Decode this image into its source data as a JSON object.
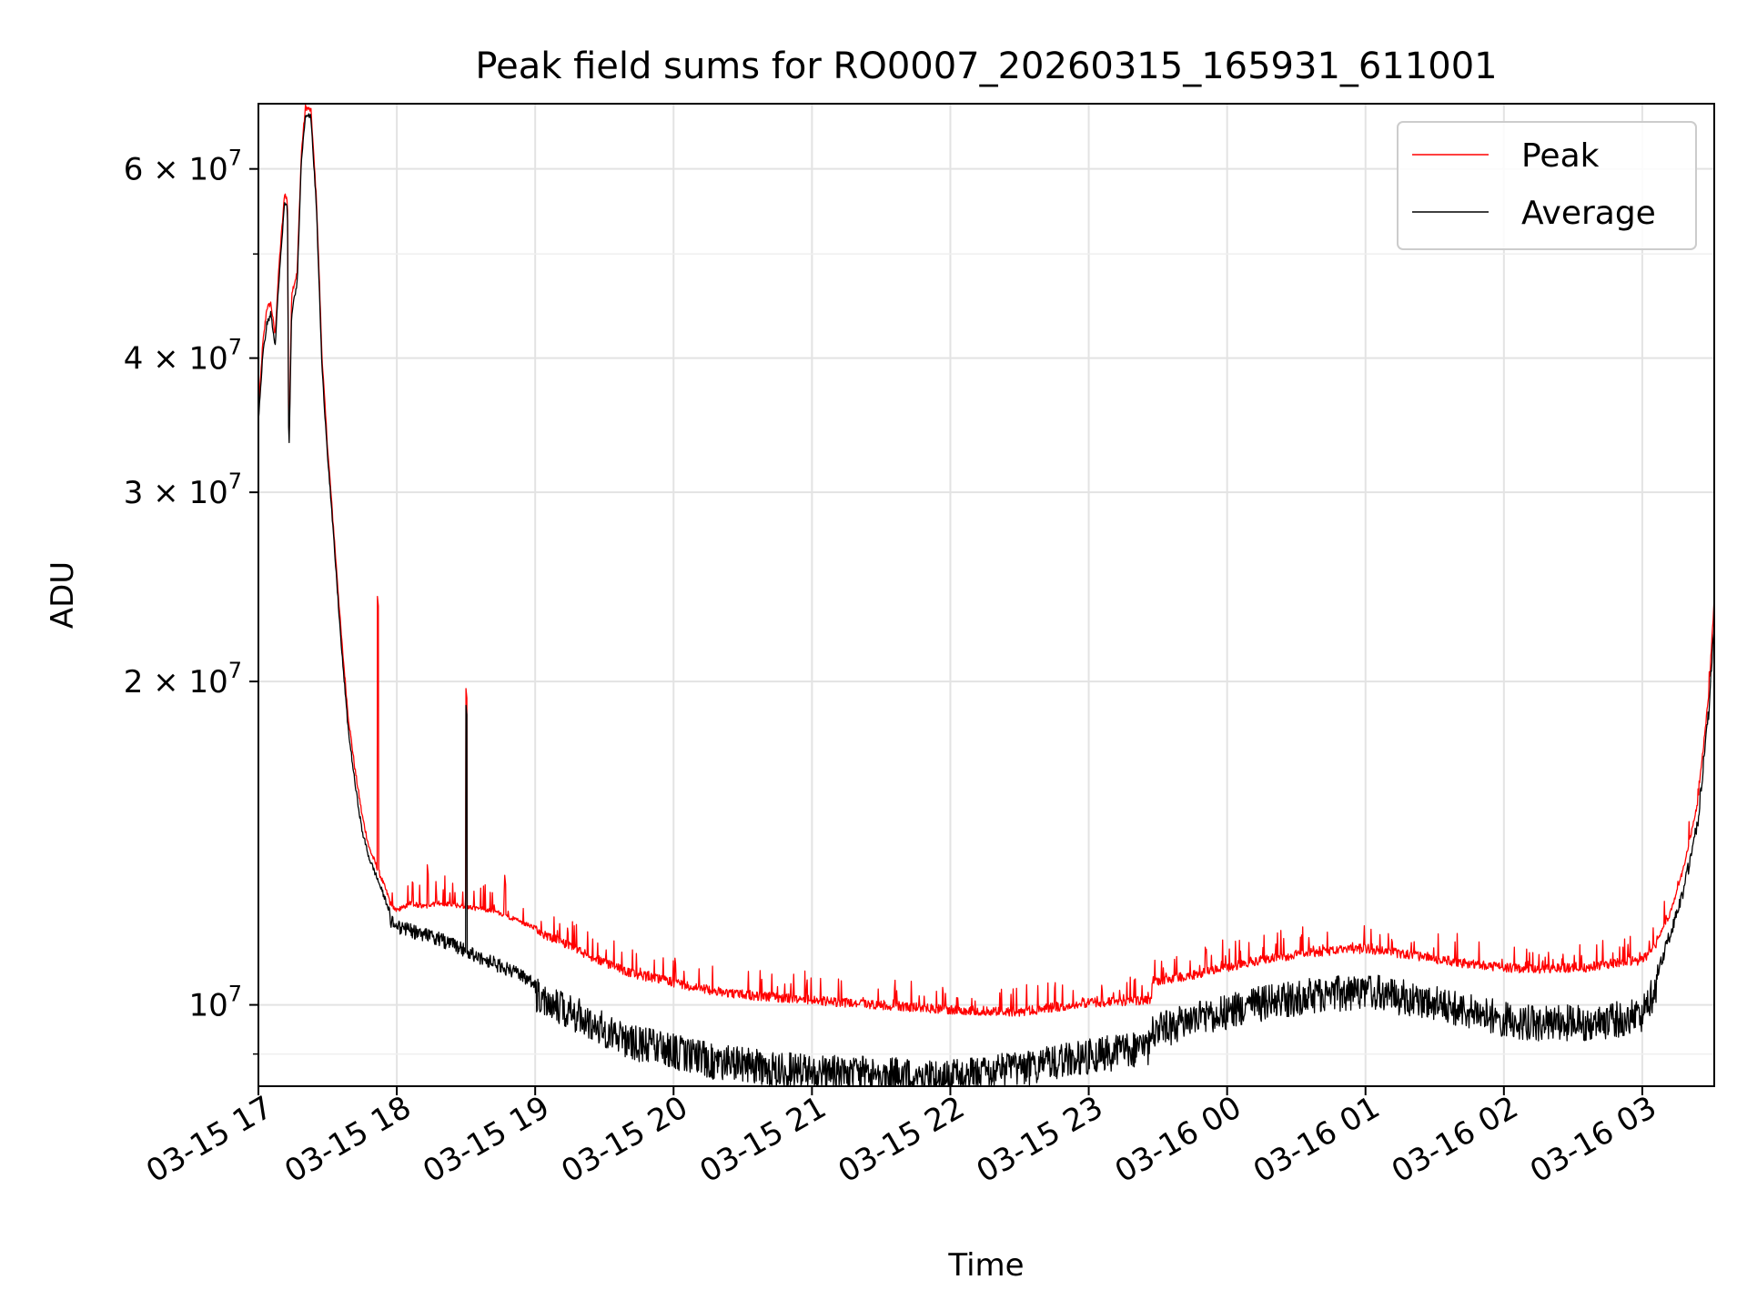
{
  "chart_data": {
    "type": "line",
    "title": "Peak field sums for RO0007_20260315_165931_611001",
    "xlabel": "Time",
    "ylabel": "ADU",
    "x_range_hours": [
      0,
      10.52
    ],
    "ylim": [
      8400000,
      69000000
    ],
    "yscale": "log",
    "grid": true,
    "legend_position": "top-right",
    "x_ticks": [
      {
        "label": "03-15 17",
        "hour": 0
      },
      {
        "label": "03-15 18",
        "hour": 1
      },
      {
        "label": "03-15 19",
        "hour": 2
      },
      {
        "label": "03-15 20",
        "hour": 3
      },
      {
        "label": "03-15 21",
        "hour": 4
      },
      {
        "label": "03-15 22",
        "hour": 5
      },
      {
        "label": "03-15 23",
        "hour": 6
      },
      {
        "label": "03-16 00",
        "hour": 7
      },
      {
        "label": "03-16 01",
        "hour": 8
      },
      {
        "label": "03-16 02",
        "hour": 9
      },
      {
        "label": "03-16 03",
        "hour": 10
      }
    ],
    "y_ticks_major": [
      {
        "value": 10000000,
        "mantissa": "",
        "exponent": "7"
      },
      {
        "value": 20000000,
        "mantissa": "2",
        "exponent": "7"
      },
      {
        "value": 30000000,
        "mantissa": "3",
        "exponent": "7"
      },
      {
        "value": 40000000,
        "mantissa": "4",
        "exponent": "7"
      },
      {
        "value": 60000000,
        "mantissa": "6",
        "exponent": "7"
      }
    ],
    "y_ticks_minor": [
      9000000,
      50000000
    ],
    "series": [
      {
        "name": "Peak",
        "color": "#ff0000",
        "points": [
          [
            0,
            35500000
          ],
          [
            0.03,
            41000000
          ],
          [
            0.06,
            44500000
          ],
          [
            0.09,
            45000000
          ],
          [
            0.12,
            42000000
          ],
          [
            0.15,
            49000000
          ],
          [
            0.19,
            57000000
          ],
          [
            0.21,
            56000000
          ],
          [
            0.22,
            32500000
          ],
          [
            0.24,
            46000000
          ],
          [
            0.28,
            48000000
          ],
          [
            0.31,
            62000000
          ],
          [
            0.34,
            68500000
          ],
          [
            0.38,
            68000000
          ],
          [
            0.42,
            56000000
          ],
          [
            0.46,
            40000000
          ],
          [
            0.5,
            33000000
          ],
          [
            0.55,
            27000000
          ],
          [
            0.6,
            22000000
          ],
          [
            0.65,
            18500000
          ],
          [
            0.7,
            16500000
          ],
          [
            0.75,
            15000000
          ],
          [
            0.8,
            14000000
          ],
          [
            0.85,
            13500000
          ],
          [
            0.9,
            13000000
          ],
          [
            0.95,
            12500000
          ],
          [
            1.0,
            12300000
          ],
          [
            1.1,
            12500000
          ],
          [
            1.2,
            12400000
          ],
          [
            1.3,
            12500000
          ],
          [
            1.5,
            12400000
          ],
          [
            1.7,
            12300000
          ],
          [
            1.9,
            12000000
          ],
          [
            2.1,
            11700000
          ],
          [
            2.4,
            11200000
          ],
          [
            2.7,
            10800000
          ],
          [
            3.0,
            10600000
          ],
          [
            3.3,
            10400000
          ],
          [
            3.6,
            10300000
          ],
          [
            4.0,
            10200000
          ],
          [
            4.5,
            10100000
          ],
          [
            5.0,
            10000000
          ],
          [
            5.5,
            9950000
          ],
          [
            6.0,
            10150000
          ],
          [
            6.45,
            10200000
          ],
          [
            6.46,
            10600000
          ],
          [
            6.8,
            10800000
          ],
          [
            7.2,
            11100000
          ],
          [
            7.6,
            11300000
          ],
          [
            8.0,
            11400000
          ],
          [
            8.4,
            11200000
          ],
          [
            8.8,
            11000000
          ],
          [
            9.2,
            10900000
          ],
          [
            9.6,
            10950000
          ],
          [
            9.9,
            11100000
          ],
          [
            10.0,
            11100000
          ],
          [
            10.1,
            11500000
          ],
          [
            10.2,
            12200000
          ],
          [
            10.3,
            13500000
          ],
          [
            10.4,
            15500000
          ],
          [
            10.48,
            19500000
          ],
          [
            10.52,
            24000000
          ]
        ],
        "spikes": [
          {
            "hour": 0.86,
            "value": 24000000
          },
          {
            "hour": 1.5,
            "value": 19700000
          },
          {
            "hour": 1.78,
            "value": 13200000
          },
          {
            "hour": 1.22,
            "value": 13500000
          }
        ]
      },
      {
        "name": "Average",
        "color": "#000000",
        "points": [
          [
            0,
            35000000
          ],
          [
            0.03,
            40000000
          ],
          [
            0.06,
            43000000
          ],
          [
            0.09,
            44000000
          ],
          [
            0.12,
            41000000
          ],
          [
            0.15,
            47500000
          ],
          [
            0.19,
            56000000
          ],
          [
            0.21,
            55000000
          ],
          [
            0.22,
            32000000
          ],
          [
            0.24,
            44000000
          ],
          [
            0.28,
            47000000
          ],
          [
            0.31,
            61000000
          ],
          [
            0.34,
            67500000
          ],
          [
            0.38,
            67000000
          ],
          [
            0.42,
            55000000
          ],
          [
            0.46,
            39000000
          ],
          [
            0.5,
            32500000
          ],
          [
            0.55,
            26500000
          ],
          [
            0.6,
            21500000
          ],
          [
            0.65,
            18000000
          ],
          [
            0.7,
            16000000
          ],
          [
            0.75,
            14500000
          ],
          [
            0.8,
            13700000
          ],
          [
            0.85,
            13200000
          ],
          [
            0.9,
            12700000
          ],
          [
            0.95,
            12200000
          ],
          [
            1.0,
            12000000
          ],
          [
            1.1,
            11900000
          ],
          [
            1.2,
            11800000
          ],
          [
            1.3,
            11700000
          ],
          [
            1.5,
            11400000
          ],
          [
            1.7,
            11100000
          ],
          [
            1.9,
            10800000
          ],
          [
            2.1,
            10500000
          ],
          [
            2.4,
            10000000
          ],
          [
            2.7,
            9600000
          ],
          [
            3.0,
            9400000
          ],
          [
            3.3,
            9200000
          ],
          [
            3.6,
            9100000
          ],
          [
            4.0,
            9000000
          ],
          [
            4.5,
            8950000
          ],
          [
            5.0,
            8900000
          ],
          [
            5.5,
            9050000
          ],
          [
            6.0,
            9300000
          ],
          [
            6.45,
            9500000
          ],
          [
            6.46,
            9800000
          ],
          [
            6.8,
            10100000
          ],
          [
            7.2,
            10400000
          ],
          [
            7.6,
            10600000
          ],
          [
            8.0,
            10700000
          ],
          [
            8.4,
            10500000
          ],
          [
            8.8,
            10200000
          ],
          [
            9.2,
            10000000
          ],
          [
            9.6,
            10000000
          ],
          [
            9.9,
            10100000
          ],
          [
            10.0,
            10200000
          ],
          [
            10.1,
            10800000
          ],
          [
            10.2,
            11800000
          ],
          [
            10.3,
            13000000
          ],
          [
            10.4,
            15000000
          ],
          [
            10.48,
            19000000
          ],
          [
            10.52,
            23000000
          ]
        ],
        "spikes": [
          {
            "hour": 1.5,
            "value": 19000000
          }
        ]
      }
    ]
  }
}
